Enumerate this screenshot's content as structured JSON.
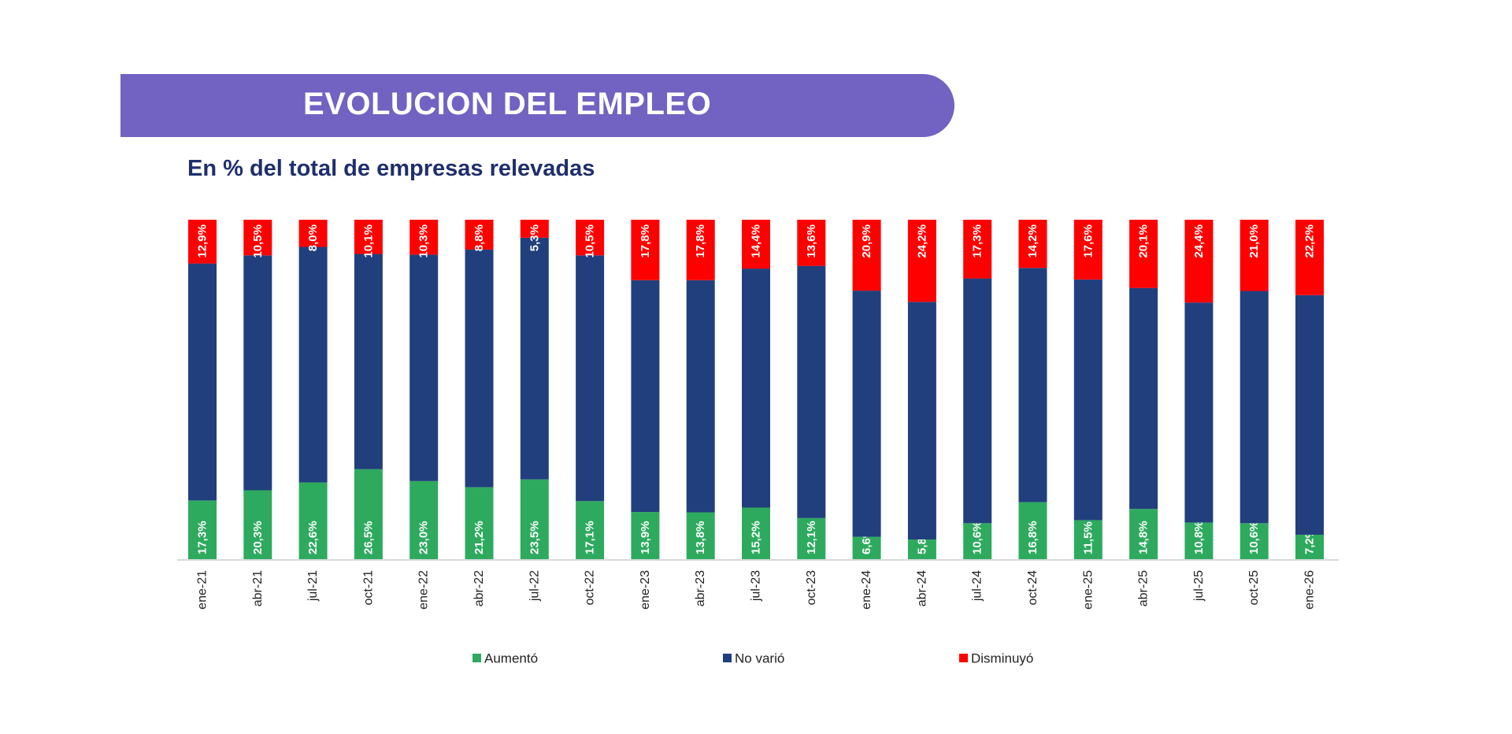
{
  "header": {
    "title": "EVOLUCION DEL EMPLEO",
    "subtitle": "En % del total de empresas relevadas"
  },
  "chart_data": {
    "type": "bar",
    "stacked": true,
    "percent_stacked": true,
    "title": "EVOLUCION DEL EMPLEO",
    "subtitle": "En % del total de empresas relevadas",
    "categories": [
      "ene-21",
      "abr-21",
      "jul-21",
      "oct-21",
      "ene-22",
      "abr-22",
      "jul-22",
      "oct-22",
      "ene-23",
      "abr-23",
      "jul-23",
      "oct-23",
      "ene-24",
      "abr-24",
      "jul-24",
      "oct-24",
      "ene-25",
      "abr-25",
      "jul-25",
      "oct-25",
      "ene-26"
    ],
    "series": [
      {
        "name": "Aumentó",
        "color": "#2eaa5f",
        "labeled": true,
        "values": [
          17.3,
          20.3,
          22.6,
          26.5,
          23.0,
          21.2,
          23.5,
          17.1,
          13.9,
          13.8,
          15.2,
          12.1,
          6.6,
          5.8,
          10.6,
          16.8,
          11.5,
          14.8,
          10.8,
          10.6,
          7.2
        ]
      },
      {
        "name": "No varió",
        "color": "#213f7d",
        "labeled": false,
        "values": [
          69.8,
          69.2,
          69.4,
          63.4,
          66.7,
          70.0,
          71.2,
          72.4,
          68.3,
          68.4,
          70.4,
          74.3,
          72.5,
          70.0,
          72.1,
          69.0,
          70.9,
          65.1,
          64.8,
          68.4,
          70.6
        ]
      },
      {
        "name": "Disminuyó",
        "color": "#ff0000",
        "labeled": true,
        "values": [
          12.9,
          10.5,
          8.0,
          10.1,
          10.3,
          8.8,
          5.3,
          10.5,
          17.8,
          17.8,
          14.4,
          13.6,
          20.9,
          24.2,
          17.3,
          14.2,
          17.6,
          20.1,
          24.4,
          21.0,
          22.2
        ]
      }
    ],
    "ylim": [
      0,
      100
    ],
    "y_axis_visible": false,
    "grid": false,
    "legend": "bottom",
    "decimal_separator": ","
  }
}
